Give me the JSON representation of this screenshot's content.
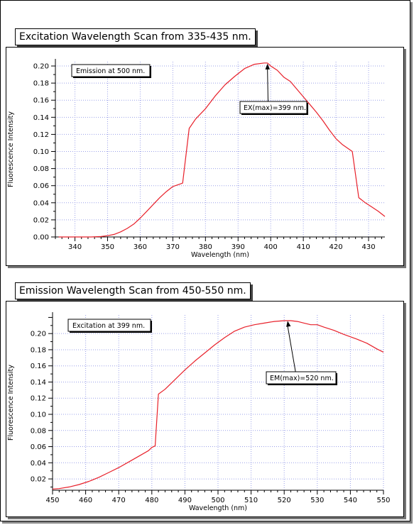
{
  "chart_data": [
    {
      "type": "line",
      "title": "Excitation Wavelength Scan from 335-435 nm.",
      "xlabel": "Wavelength (nm)",
      "ylabel": "Fluorescence Intensity",
      "xlim": [
        334,
        435
      ],
      "ylim": [
        0.0,
        0.205
      ],
      "x_ticks": [
        340,
        350,
        360,
        370,
        380,
        390,
        400,
        410,
        420,
        430
      ],
      "x_tick_labels": [
        "340",
        "350",
        "360",
        "370",
        "380",
        "390",
        "400",
        "410",
        "420",
        "430"
      ],
      "y_ticks": [
        0.0,
        0.02,
        0.04,
        0.06,
        0.08,
        0.1,
        0.12,
        0.14,
        0.16,
        0.18,
        0.2
      ],
      "y_tick_labels": [
        "0.00",
        "0.02",
        "0.04",
        "0.06",
        "0.08",
        "0.10",
        "0.12",
        "0.14",
        "0.16",
        "0.18",
        "0.20"
      ],
      "grid": true,
      "series_color": "#e8202a",
      "series": [
        {
          "x": [
            335,
            340,
            345,
            348,
            350,
            352,
            354,
            356,
            358,
            360,
            362,
            364,
            366,
            368,
            370,
            373,
            375,
            377,
            380,
            383,
            386,
            389,
            392,
            395,
            398,
            399,
            400,
            402,
            404,
            406,
            408,
            410,
            412,
            414,
            416,
            418,
            420,
            422,
            425,
            427,
            429,
            431,
            433,
            435
          ],
          "y": [
            0.0,
            0.0,
            0.0,
            0.0005,
            0.0015,
            0.003,
            0.006,
            0.01,
            0.015,
            0.022,
            0.03,
            0.038,
            0.046,
            0.053,
            0.059,
            0.063,
            0.127,
            0.138,
            0.15,
            0.165,
            0.178,
            0.188,
            0.197,
            0.202,
            0.2035,
            0.2035,
            0.2,
            0.195,
            0.187,
            0.182,
            0.173,
            0.164,
            0.155,
            0.146,
            0.136,
            0.125,
            0.115,
            0.108,
            0.1,
            0.046,
            0.04,
            0.035,
            0.03,
            0.024
          ]
        }
      ],
      "annotations": {
        "condition": "Emission at 500 nm.",
        "peak_label": "EX(max)=399 nm.",
        "peak": [
          399,
          0.2035
        ]
      }
    },
    {
      "type": "line",
      "title": "Emission Wavelength Scan from 450-550 nm.",
      "xlabel": "Wavelength (nm)",
      "ylabel": "Fluorescence Intensity",
      "xlim": [
        450,
        550
      ],
      "ylim": [
        0.006,
        0.223
      ],
      "x_ticks": [
        450,
        460,
        470,
        480,
        490,
        500,
        510,
        520,
        530,
        540,
        550
      ],
      "x_tick_labels": [
        "450",
        "460",
        "470",
        "480",
        "490",
        "500",
        "510",
        "520",
        "530",
        "540",
        "550"
      ],
      "y_ticks": [
        0.02,
        0.04,
        0.06,
        0.08,
        0.1,
        0.12,
        0.14,
        0.16,
        0.18,
        0.2
      ],
      "y_tick_labels": [
        "0.02",
        "0.04",
        "0.06",
        "0.08",
        "0.10",
        "0.12",
        "0.14",
        "0.16",
        "0.18",
        "0.20"
      ],
      "grid": true,
      "series_color": "#e8202a",
      "series": [
        {
          "x": [
            450,
            452,
            455,
            458,
            461,
            464,
            467,
            470,
            473,
            476,
            479,
            480,
            481,
            482,
            484,
            487,
            490,
            493,
            496,
            499,
            502,
            505,
            508,
            511,
            514,
            517,
            520,
            522,
            524,
            526,
            528,
            530,
            532,
            535,
            538,
            540,
            542,
            545,
            548,
            550
          ],
          "y": [
            0.0075,
            0.008,
            0.01,
            0.013,
            0.017,
            0.022,
            0.028,
            0.034,
            0.041,
            0.048,
            0.055,
            0.059,
            0.061,
            0.125,
            0.131,
            0.143,
            0.155,
            0.166,
            0.176,
            0.186,
            0.195,
            0.203,
            0.208,
            0.211,
            0.213,
            0.215,
            0.216,
            0.216,
            0.215,
            0.213,
            0.211,
            0.211,
            0.208,
            0.204,
            0.199,
            0.196,
            0.193,
            0.188,
            0.181,
            0.177
          ]
        }
      ],
      "annotations": {
        "condition": "Excitation at 399 nm.",
        "peak_label": "EM(max)=520 nm.",
        "peak": [
          521,
          0.2165
        ]
      }
    }
  ]
}
